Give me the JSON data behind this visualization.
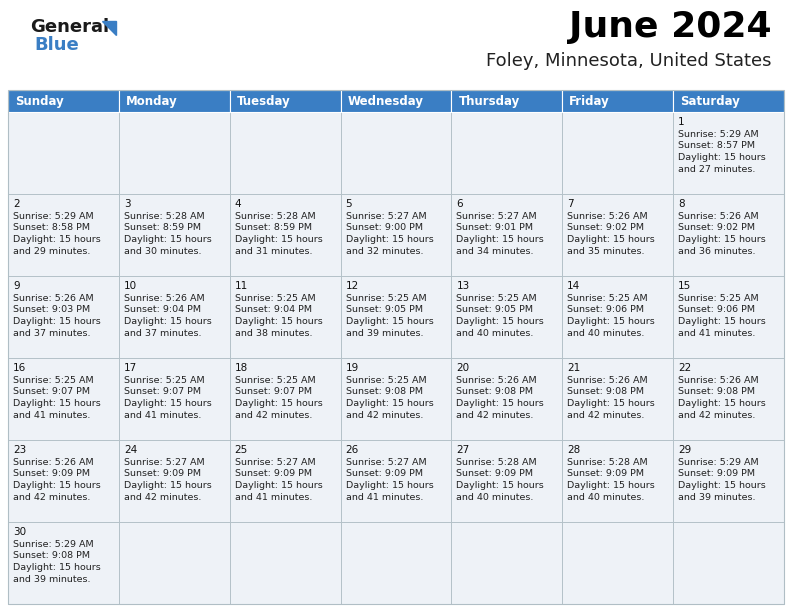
{
  "title": "June 2024",
  "subtitle": "Foley, Minnesota, United States",
  "header_color": "#3a7ec4",
  "header_text_color": "#ffffff",
  "cell_bg_even": "#eef2f7",
  "cell_bg_odd": "#f7f9fb",
  "border_color": "#b0bec5",
  "title_color": "#000000",
  "subtitle_color": "#222222",
  "day_headers": [
    "Sunday",
    "Monday",
    "Tuesday",
    "Wednesday",
    "Thursday",
    "Friday",
    "Saturday"
  ],
  "days": [
    {
      "day": 1,
      "col": 6,
      "row": 0,
      "sunrise": "5:29 AM",
      "sunset": "8:57 PM",
      "daylight_l1": "15 hours",
      "daylight_l2": "and 27 minutes."
    },
    {
      "day": 2,
      "col": 0,
      "row": 1,
      "sunrise": "5:29 AM",
      "sunset": "8:58 PM",
      "daylight_l1": "15 hours",
      "daylight_l2": "and 29 minutes."
    },
    {
      "day": 3,
      "col": 1,
      "row": 1,
      "sunrise": "5:28 AM",
      "sunset": "8:59 PM",
      "daylight_l1": "15 hours",
      "daylight_l2": "and 30 minutes."
    },
    {
      "day": 4,
      "col": 2,
      "row": 1,
      "sunrise": "5:28 AM",
      "sunset": "8:59 PM",
      "daylight_l1": "15 hours",
      "daylight_l2": "and 31 minutes."
    },
    {
      "day": 5,
      "col": 3,
      "row": 1,
      "sunrise": "5:27 AM",
      "sunset": "9:00 PM",
      "daylight_l1": "15 hours",
      "daylight_l2": "and 32 minutes."
    },
    {
      "day": 6,
      "col": 4,
      "row": 1,
      "sunrise": "5:27 AM",
      "sunset": "9:01 PM",
      "daylight_l1": "15 hours",
      "daylight_l2": "and 34 minutes."
    },
    {
      "day": 7,
      "col": 5,
      "row": 1,
      "sunrise": "5:26 AM",
      "sunset": "9:02 PM",
      "daylight_l1": "15 hours",
      "daylight_l2": "and 35 minutes."
    },
    {
      "day": 8,
      "col": 6,
      "row": 1,
      "sunrise": "5:26 AM",
      "sunset": "9:02 PM",
      "daylight_l1": "15 hours",
      "daylight_l2": "and 36 minutes."
    },
    {
      "day": 9,
      "col": 0,
      "row": 2,
      "sunrise": "5:26 AM",
      "sunset": "9:03 PM",
      "daylight_l1": "15 hours",
      "daylight_l2": "and 37 minutes."
    },
    {
      "day": 10,
      "col": 1,
      "row": 2,
      "sunrise": "5:26 AM",
      "sunset": "9:04 PM",
      "daylight_l1": "15 hours",
      "daylight_l2": "and 37 minutes."
    },
    {
      "day": 11,
      "col": 2,
      "row": 2,
      "sunrise": "5:25 AM",
      "sunset": "9:04 PM",
      "daylight_l1": "15 hours",
      "daylight_l2": "and 38 minutes."
    },
    {
      "day": 12,
      "col": 3,
      "row": 2,
      "sunrise": "5:25 AM",
      "sunset": "9:05 PM",
      "daylight_l1": "15 hours",
      "daylight_l2": "and 39 minutes."
    },
    {
      "day": 13,
      "col": 4,
      "row": 2,
      "sunrise": "5:25 AM",
      "sunset": "9:05 PM",
      "daylight_l1": "15 hours",
      "daylight_l2": "and 40 minutes."
    },
    {
      "day": 14,
      "col": 5,
      "row": 2,
      "sunrise": "5:25 AM",
      "sunset": "9:06 PM",
      "daylight_l1": "15 hours",
      "daylight_l2": "and 40 minutes."
    },
    {
      "day": 15,
      "col": 6,
      "row": 2,
      "sunrise": "5:25 AM",
      "sunset": "9:06 PM",
      "daylight_l1": "15 hours",
      "daylight_l2": "and 41 minutes."
    },
    {
      "day": 16,
      "col": 0,
      "row": 3,
      "sunrise": "5:25 AM",
      "sunset": "9:07 PM",
      "daylight_l1": "15 hours",
      "daylight_l2": "and 41 minutes."
    },
    {
      "day": 17,
      "col": 1,
      "row": 3,
      "sunrise": "5:25 AM",
      "sunset": "9:07 PM",
      "daylight_l1": "15 hours",
      "daylight_l2": "and 41 minutes."
    },
    {
      "day": 18,
      "col": 2,
      "row": 3,
      "sunrise": "5:25 AM",
      "sunset": "9:07 PM",
      "daylight_l1": "15 hours",
      "daylight_l2": "and 42 minutes."
    },
    {
      "day": 19,
      "col": 3,
      "row": 3,
      "sunrise": "5:25 AM",
      "sunset": "9:08 PM",
      "daylight_l1": "15 hours",
      "daylight_l2": "and 42 minutes."
    },
    {
      "day": 20,
      "col": 4,
      "row": 3,
      "sunrise": "5:26 AM",
      "sunset": "9:08 PM",
      "daylight_l1": "15 hours",
      "daylight_l2": "and 42 minutes."
    },
    {
      "day": 21,
      "col": 5,
      "row": 3,
      "sunrise": "5:26 AM",
      "sunset": "9:08 PM",
      "daylight_l1": "15 hours",
      "daylight_l2": "and 42 minutes."
    },
    {
      "day": 22,
      "col": 6,
      "row": 3,
      "sunrise": "5:26 AM",
      "sunset": "9:08 PM",
      "daylight_l1": "15 hours",
      "daylight_l2": "and 42 minutes."
    },
    {
      "day": 23,
      "col": 0,
      "row": 4,
      "sunrise": "5:26 AM",
      "sunset": "9:09 PM",
      "daylight_l1": "15 hours",
      "daylight_l2": "and 42 minutes."
    },
    {
      "day": 24,
      "col": 1,
      "row": 4,
      "sunrise": "5:27 AM",
      "sunset": "9:09 PM",
      "daylight_l1": "15 hours",
      "daylight_l2": "and 42 minutes."
    },
    {
      "day": 25,
      "col": 2,
      "row": 4,
      "sunrise": "5:27 AM",
      "sunset": "9:09 PM",
      "daylight_l1": "15 hours",
      "daylight_l2": "and 41 minutes."
    },
    {
      "day": 26,
      "col": 3,
      "row": 4,
      "sunrise": "5:27 AM",
      "sunset": "9:09 PM",
      "daylight_l1": "15 hours",
      "daylight_l2": "and 41 minutes."
    },
    {
      "day": 27,
      "col": 4,
      "row": 4,
      "sunrise": "5:28 AM",
      "sunset": "9:09 PM",
      "daylight_l1": "15 hours",
      "daylight_l2": "and 40 minutes."
    },
    {
      "day": 28,
      "col": 5,
      "row": 4,
      "sunrise": "5:28 AM",
      "sunset": "9:09 PM",
      "daylight_l1": "15 hours",
      "daylight_l2": "and 40 minutes."
    },
    {
      "day": 29,
      "col": 6,
      "row": 4,
      "sunrise": "5:29 AM",
      "sunset": "9:09 PM",
      "daylight_l1": "15 hours",
      "daylight_l2": "and 39 minutes."
    },
    {
      "day": 30,
      "col": 0,
      "row": 5,
      "sunrise": "5:29 AM",
      "sunset": "9:08 PM",
      "daylight_l1": "15 hours",
      "daylight_l2": "and 39 minutes."
    }
  ]
}
